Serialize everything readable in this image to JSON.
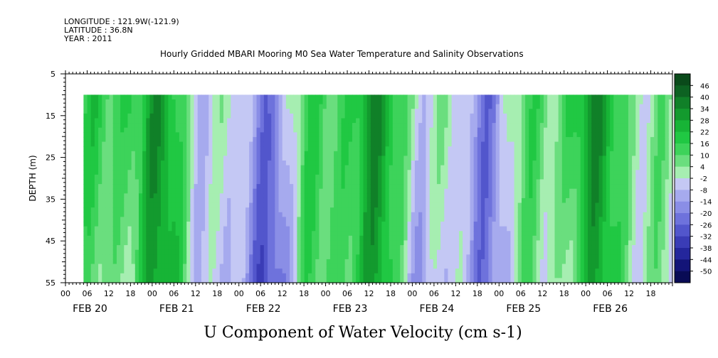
{
  "header": {
    "longitude": "LONGITUDE : 121.9W(-121.9)",
    "latitude": "LATITUDE : 36.8N",
    "year": "YEAR : 2011",
    "title": "Hourly Gridded MBARI Mooring M0 Sea Water Temperature and Salinity Observations"
  },
  "chart_data": {
    "type": "heatmap",
    "title": "Hourly Gridded MBARI Mooring M0 Sea Water Temperature and Salinity Observations",
    "xlabel": "",
    "ylabel": "DEPTH (m)",
    "bottom_label": "U Component of Water Velocity (cm s-1)",
    "y_range": [
      5,
      55
    ],
    "y_ticks": [
      5,
      15,
      25,
      35,
      45,
      55
    ],
    "x_start_hour": 0,
    "x_end_hour": 168,
    "x_hour_ticks": [
      "00",
      "06",
      "12",
      "18",
      "00",
      "06",
      "12",
      "18",
      "00",
      "06",
      "12",
      "18",
      "00",
      "06",
      "12",
      "18",
      "00",
      "06",
      "12",
      "18",
      "00",
      "06",
      "12",
      "18",
      "00",
      "06",
      "12",
      "18"
    ],
    "day_labels": [
      "FEB 20",
      "FEB 21",
      "FEB 22",
      "FEB 23",
      "FEB 24",
      "FEB 25",
      "FEB 26"
    ],
    "data_top_depth": 10,
    "data_start_hour": 5,
    "colorbar_levels": [
      46,
      40,
      34,
      28,
      22,
      16,
      10,
      4,
      -2,
      -8,
      -14,
      -20,
      -26,
      -32,
      -38,
      -44,
      -50
    ],
    "colorbar_colors": [
      "#0a4a1a",
      "#0d6222",
      "#108028",
      "#139a2e",
      "#17b436",
      "#20c843",
      "#3dd35a",
      "#6ade7e",
      "#a6eeb1",
      "#c4c8f4",
      "#a6aaee",
      "#8a8ee6",
      "#6e72dc",
      "#5256cc",
      "#3a3cb6",
      "#24269c",
      "#131478",
      "#090b55"
    ]
  }
}
